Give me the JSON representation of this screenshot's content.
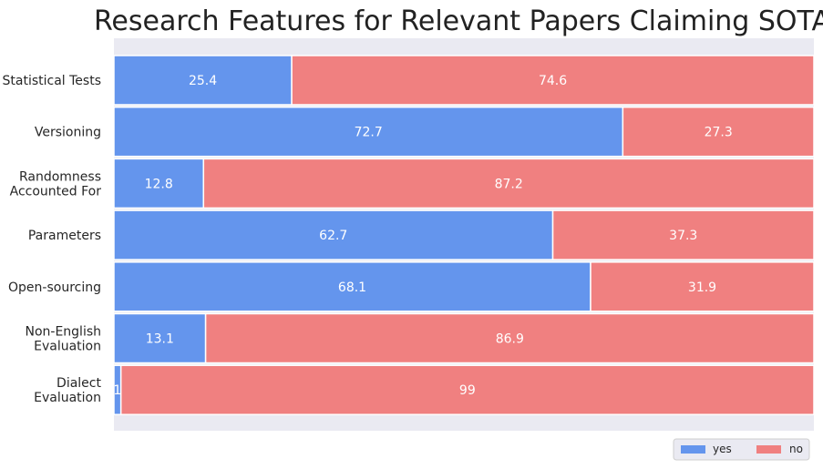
{
  "chart_data": {
    "type": "bar",
    "orientation": "horizontal",
    "stacked": true,
    "title": "Research Features for Relevant Papers Claiming SOTA",
    "xlabel": "",
    "ylabel": "",
    "xlim": [
      0,
      100
    ],
    "categories": [
      [
        "Statistical Tests"
      ],
      [
        "Versioning"
      ],
      [
        "Randomness",
        "Accounted For"
      ],
      [
        "Parameters"
      ],
      [
        "Open-sourcing"
      ],
      [
        "Non-English",
        "Evaluation"
      ],
      [
        "Dialect",
        "Evaluation"
      ]
    ],
    "series": [
      {
        "name": "yes",
        "color": "#6495ED",
        "values": [
          25.4,
          72.7,
          12.8,
          62.7,
          68.1,
          13.1,
          1
        ],
        "labels": [
          "25.4",
          "72.7",
          "12.8",
          "62.7",
          "68.1",
          "13.1",
          "1"
        ]
      },
      {
        "name": "no",
        "color": "#F08080",
        "values": [
          74.6,
          27.3,
          87.2,
          37.3,
          31.9,
          86.9,
          99
        ],
        "labels": [
          "74.6",
          "27.3",
          "87.2",
          "37.3",
          "31.9",
          "86.9",
          "99"
        ]
      }
    ],
    "legend_position": "bottom-right",
    "background_color": "#EAEAF2",
    "grid": false
  }
}
